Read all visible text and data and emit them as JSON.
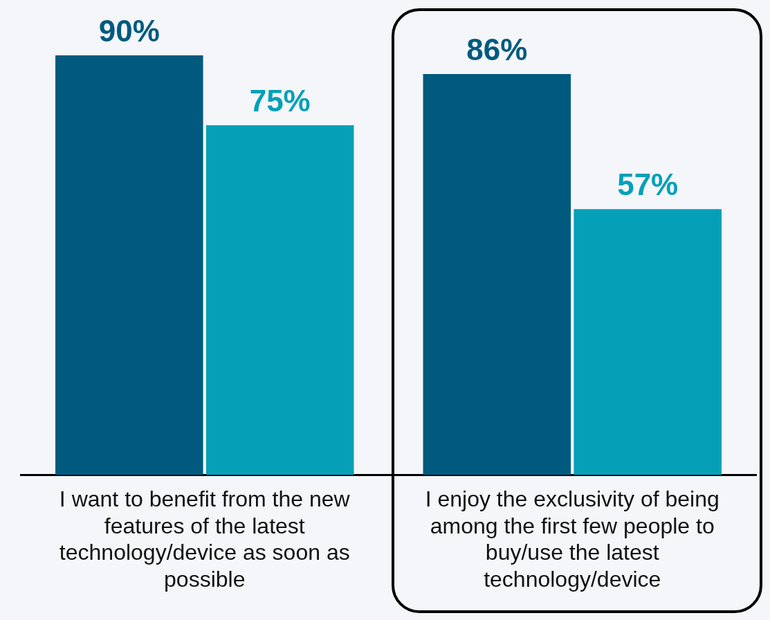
{
  "chart_data": {
    "type": "bar",
    "categories": [
      "I want to benefit from the new features of the latest technology/device as soon as possible",
      "I enjoy the exclusivity of being among the first few people to buy/use the latest technology/device"
    ],
    "series": [
      {
        "color": "#005a7f",
        "values": [
          90,
          86
        ],
        "value_labels": [
          "90%",
          "86%"
        ]
      },
      {
        "color": "#05a0b8",
        "values": [
          75,
          57
        ],
        "value_labels": [
          "75%",
          "57%"
        ]
      }
    ],
    "legend": false,
    "grid": false
  }
}
